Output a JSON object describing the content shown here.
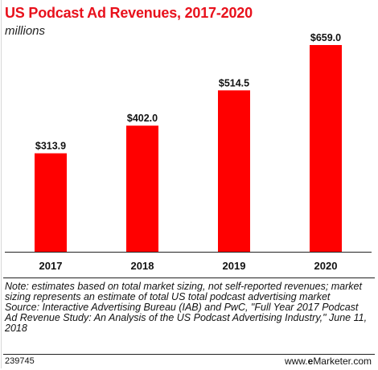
{
  "header": {
    "title": "US Podcast Ad Revenues, 2017-2020",
    "subtitle": "millions"
  },
  "chart_data": {
    "type": "bar",
    "title": "US Podcast Ad Revenues, 2017-2020",
    "subtitle": "millions",
    "categories": [
      "2017",
      "2018",
      "2019",
      "2020"
    ],
    "values": [
      313.9,
      402.0,
      514.5,
      659.0
    ],
    "value_labels": [
      "$313.9",
      "$402.0",
      "$514.5",
      "$659.0"
    ],
    "bar_color": "#ff0000",
    "grid": false,
    "legend": "none",
    "ylim": [
      0,
      700
    ]
  },
  "notes": {
    "note": "Note: estimates based on total market sizing, not self-reported revenues; market sizing represents an estimate of total US total podcast advertising market",
    "source": "Source: Interactive Advertising Bureau (IAB) and PwC, \"Full Year 2017 Podcast Ad Revenue Study: An Analysis of the US Podcast Advertising Industry,\" June 11, 2018"
  },
  "footer": {
    "id": "239745",
    "brand_prefix": "www.",
    "brand_e": "e",
    "brand_rest": "Marketer.com"
  }
}
